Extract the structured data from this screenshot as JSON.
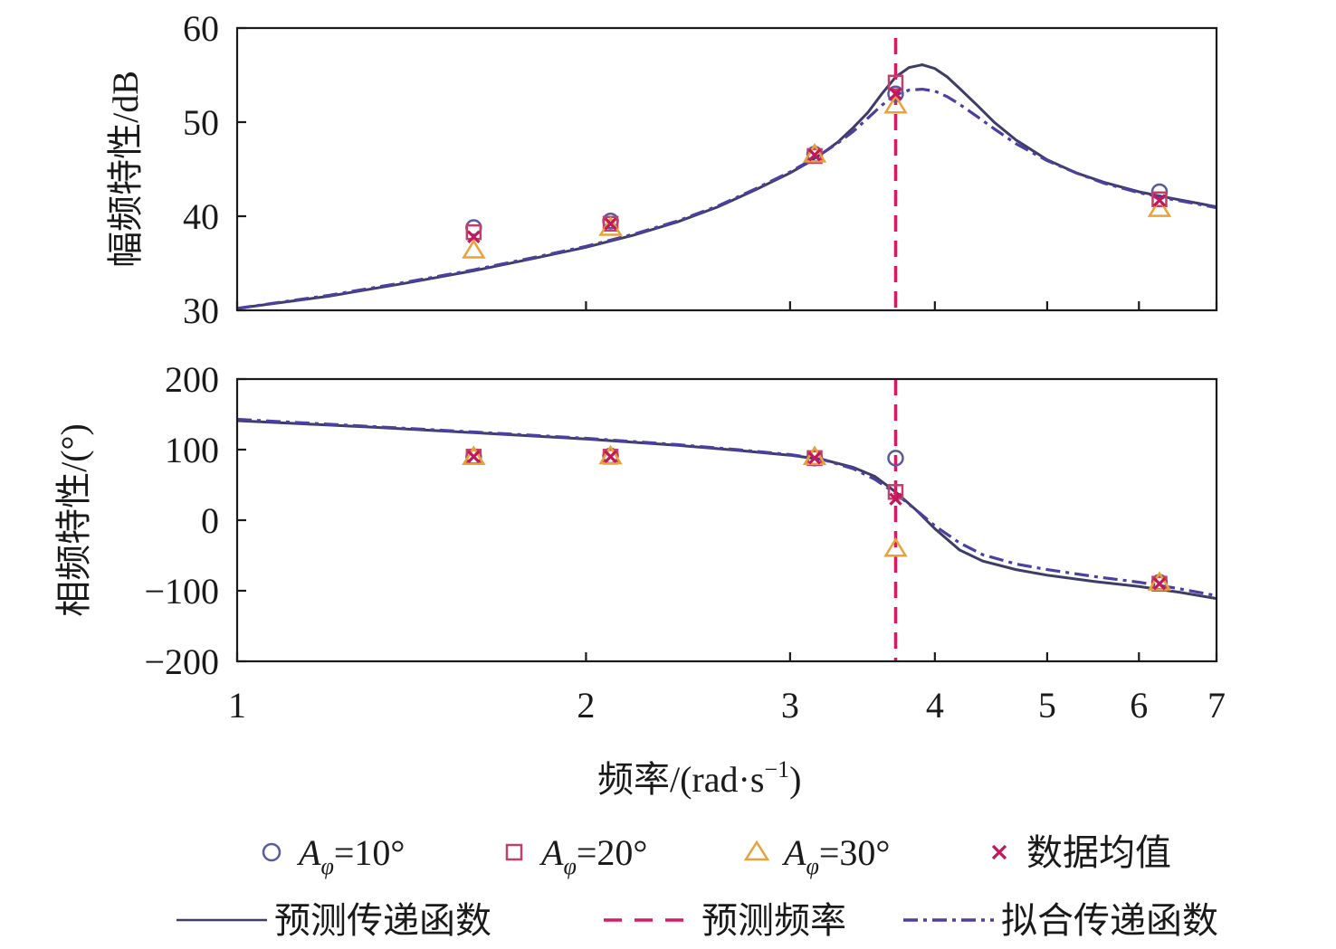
{
  "chart_data": [
    {
      "type": "line",
      "id": "magnitude",
      "ylabel": "幅频特性/dB",
      "xscale": "log",
      "xlim": [
        1,
        7
      ],
      "ylim": [
        30,
        60
      ],
      "xticks": [
        1,
        2,
        3,
        4,
        5,
        6,
        7
      ],
      "yticks": [
        30,
        40,
        50,
        60
      ],
      "ytick_labels": [
        "30",
        "40",
        "50",
        "60"
      ],
      "series": [
        {
          "name": "预测传递函数",
          "style": "solid",
          "color": "#3d3d66",
          "x": [
            1.0,
            1.2,
            1.4,
            1.6,
            1.8,
            2.0,
            2.2,
            2.4,
            2.6,
            2.8,
            3.0,
            3.1,
            3.2,
            3.3,
            3.4,
            3.5,
            3.6,
            3.7,
            3.8,
            3.9,
            4.0,
            4.1,
            4.2,
            4.35,
            4.5,
            4.7,
            5.0,
            5.3,
            5.6,
            6.0,
            6.4,
            6.8,
            7.0
          ],
          "y": [
            30.2,
            31.5,
            32.9,
            34.2,
            35.5,
            36.7,
            38.0,
            39.4,
            41.0,
            42.8,
            44.6,
            45.6,
            46.7,
            47.9,
            49.4,
            51.0,
            53.0,
            54.8,
            55.8,
            56.1,
            55.7,
            54.8,
            53.6,
            51.8,
            50.0,
            48.1,
            46.0,
            44.6,
            43.6,
            42.6,
            41.9,
            41.3,
            41.0
          ]
        },
        {
          "name": "拟合传递函数",
          "style": "dashdot",
          "color": "#4b3fa0",
          "x": [
            1.0,
            1.2,
            1.4,
            1.6,
            1.8,
            2.0,
            2.2,
            2.4,
            2.6,
            2.8,
            3.0,
            3.1,
            3.2,
            3.3,
            3.4,
            3.5,
            3.6,
            3.7,
            3.8,
            3.9,
            4.0,
            4.1,
            4.2,
            4.35,
            4.5,
            4.7,
            5.0,
            5.3,
            5.6,
            6.0,
            6.4,
            6.8,
            7.0
          ],
          "y": [
            30.2,
            31.6,
            33.0,
            34.3,
            35.6,
            36.8,
            38.1,
            39.5,
            41.1,
            42.9,
            44.7,
            45.7,
            46.7,
            47.8,
            49.0,
            50.4,
            51.8,
            52.9,
            53.4,
            53.5,
            53.3,
            52.7,
            51.9,
            50.6,
            49.3,
            47.7,
            45.9,
            44.6,
            43.5,
            42.5,
            41.8,
            41.2,
            40.9
          ]
        },
        {
          "name": "Aφ=10°",
          "marker": "circle",
          "color": "#5a5aa0",
          "x": [
            1.6,
            2.1,
            3.15,
            3.7,
            6.25
          ],
          "y": [
            38.8,
            39.5,
            46.6,
            53.0,
            42.6
          ]
        },
        {
          "name": "Aφ=20°",
          "marker": "square",
          "color": "#c0406a",
          "x": [
            1.6,
            2.1,
            3.15,
            3.7,
            6.25
          ],
          "y": [
            38.3,
            39.2,
            46.4,
            54.2,
            41.8
          ]
        },
        {
          "name": "Aφ=30°",
          "marker": "triangle",
          "color": "#e8a23a",
          "x": [
            1.6,
            2.1,
            3.15,
            3.7,
            6.25
          ],
          "y": [
            36.4,
            38.8,
            46.6,
            51.8,
            40.8
          ]
        },
        {
          "name": "数据均值",
          "marker": "x",
          "color": "#c2185b",
          "x": [
            1.6,
            2.1,
            3.15,
            3.7,
            6.25
          ],
          "y": [
            37.8,
            39.2,
            46.5,
            53.0,
            41.7
          ]
        }
      ],
      "vline": {
        "name": "预测频率",
        "x": 3.7,
        "style": "dashed",
        "color": "#d81b60"
      }
    },
    {
      "type": "line",
      "id": "phase",
      "ylabel": "相频特性/(°)",
      "xlabel": "频率/(rad·s",
      "xlabel_sup": "−1",
      "xlabel_end": ")",
      "xscale": "log",
      "xlim": [
        1,
        7
      ],
      "ylim": [
        -200,
        200
      ],
      "xticks": [
        1,
        2,
        3,
        4,
        5,
        6,
        7
      ],
      "xtick_labels": [
        "1",
        "2",
        "3",
        "4",
        "5",
        "6",
        "7"
      ],
      "yticks": [
        -200,
        -100,
        0,
        100,
        200
      ],
      "ytick_labels": [
        "−200",
        "−100",
        "0",
        "100",
        "200"
      ],
      "series": [
        {
          "name": "预测传递函数",
          "style": "solid",
          "color": "#3d3d66",
          "x": [
            1.0,
            1.3,
            1.6,
            2.0,
            2.4,
            2.7,
            3.0,
            3.2,
            3.4,
            3.55,
            3.7,
            3.85,
            4.0,
            4.2,
            4.4,
            4.7,
            5.0,
            5.5,
            6.0,
            6.5,
            7.0
          ],
          "y": [
            141,
            132,
            124,
            115,
            106,
            99,
            92,
            86,
            75,
            62,
            40,
            15,
            -12,
            -42,
            -58,
            -70,
            -78,
            -87,
            -94,
            -102,
            -111
          ]
        },
        {
          "name": "拟合传递函数",
          "style": "dashdot",
          "color": "#4b3fa0",
          "x": [
            1.0,
            1.3,
            1.6,
            2.0,
            2.4,
            2.7,
            3.0,
            3.2,
            3.4,
            3.55,
            3.7,
            3.85,
            4.0,
            4.2,
            4.4,
            4.7,
            5.0,
            5.5,
            6.0,
            6.5,
            7.0
          ],
          "y": [
            143,
            133,
            125,
            116,
            107,
            100,
            93,
            86,
            73,
            58,
            38,
            15,
            -8,
            -32,
            -49,
            -62,
            -70,
            -80,
            -88,
            -97,
            -107
          ]
        },
        {
          "name": "Aφ=10°",
          "marker": "circle",
          "color": "#5a5aa0",
          "x": [
            1.6,
            2.1,
            3.15,
            3.7,
            6.25
          ],
          "y": [
            90,
            91,
            88,
            88,
            -88
          ]
        },
        {
          "name": "Aφ=20°",
          "marker": "square",
          "color": "#c0406a",
          "x": [
            1.6,
            2.1,
            3.15,
            3.7,
            6.25
          ],
          "y": [
            90,
            90,
            88,
            40,
            -90
          ]
        },
        {
          "name": "Aφ=30°",
          "marker": "triangle",
          "color": "#e8a23a",
          "x": [
            1.6,
            2.1,
            3.15,
            3.7,
            6.25
          ],
          "y": [
            90,
            91,
            90,
            -40,
            -88
          ]
        },
        {
          "name": "数据均值",
          "marker": "x",
          "color": "#c2185b",
          "x": [
            1.6,
            2.1,
            3.15,
            3.7,
            6.25
          ],
          "y": [
            90,
            90,
            88,
            30,
            -90
          ]
        }
      ],
      "vline": {
        "name": "预测频率",
        "x": 3.7,
        "style": "dashed",
        "color": "#d81b60"
      }
    }
  ],
  "legend": {
    "placement": "bottom",
    "items": [
      {
        "label_main": "A",
        "label_sub": "φ",
        "label_rest": "=10°",
        "marker": "circle",
        "color": "#5a5aa0"
      },
      {
        "label_main": "A",
        "label_sub": "φ",
        "label_rest": "=20°",
        "marker": "square",
        "color": "#c0406a"
      },
      {
        "label_main": "A",
        "label_sub": "φ",
        "label_rest": "=30°",
        "marker": "triangle",
        "color": "#e8a23a"
      },
      {
        "label": "数据均值",
        "marker": "x",
        "color": "#c2185b"
      },
      {
        "label": "预测传递函数",
        "line": "solid",
        "color": "#3d3d66"
      },
      {
        "label": "预测频率",
        "line": "dashed",
        "color": "#d81b60"
      },
      {
        "label": "拟合传递函数",
        "line": "dashdot",
        "color": "#4b3fa0"
      }
    ]
  }
}
